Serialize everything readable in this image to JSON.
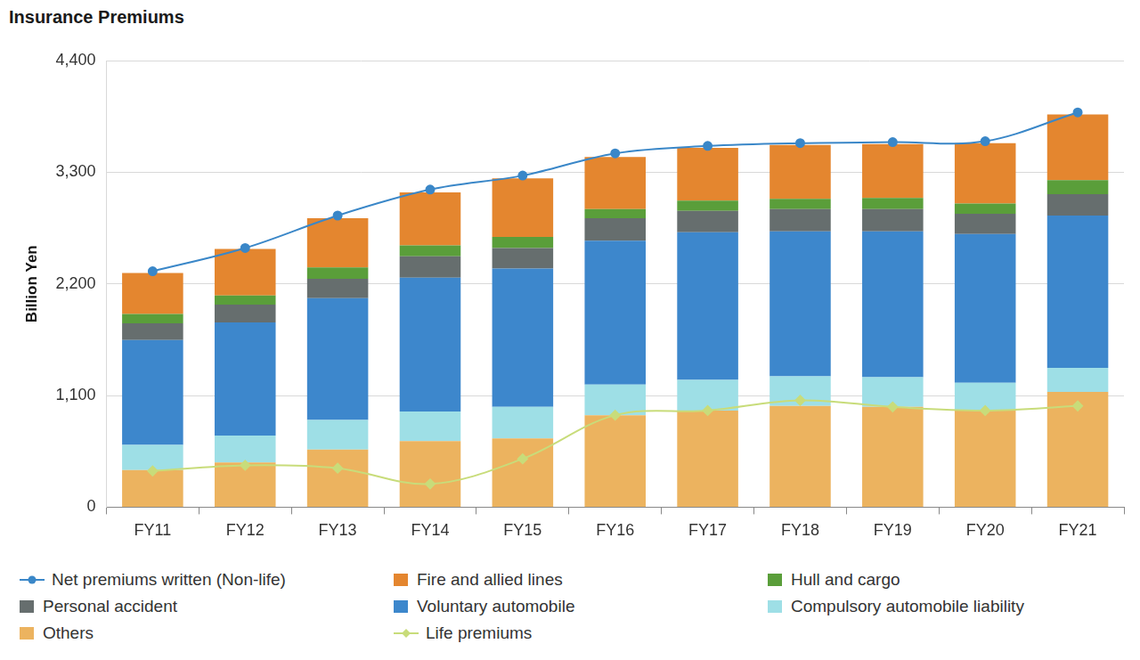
{
  "chart_data": {
    "type": "bar",
    "title": "Insurance Premiums",
    "y_label": "Billion Yen",
    "categories": [
      "FY11",
      "FY12",
      "FY13",
      "FY14",
      "FY15",
      "FY16",
      "FY17",
      "FY18",
      "FY19",
      "FY20",
      "FY21"
    ],
    "series": [
      {
        "name": "Net premiums written (Non-life)",
        "type": "line",
        "marker": "circle",
        "line_style": "solid",
        "color": "#3a87c8",
        "values": [
          2324,
          2553,
          2873,
          3129,
          3267,
          3486,
          3559,
          3587,
          3596,
          3605,
          3889
        ]
      },
      {
        "name": "Fire and allied lines",
        "type": "bar",
        "color": "#e4862f",
        "values": [
          403,
          458,
          485,
          522,
          576,
          513,
          521,
          531,
          531,
          595,
          649
        ]
      },
      {
        "name": "Hull and cargo",
        "type": "bar",
        "color": "#5a9e3a",
        "values": [
          91,
          91,
          110,
          109,
          110,
          91,
          101,
          101,
          110,
          101,
          137
        ]
      },
      {
        "name": "Personal accident",
        "type": "bar",
        "color": "#666e6e",
        "values": [
          165,
          174,
          192,
          211,
          201,
          220,
          211,
          219,
          219,
          201,
          211
        ]
      },
      {
        "name": "Voluntary automobile",
        "type": "bar",
        "color": "#3d87cc",
        "values": [
          1034,
          1116,
          1199,
          1318,
          1364,
          1418,
          1454,
          1428,
          1437,
          1464,
          1500
        ]
      },
      {
        "name": "Compulsory automobile liability",
        "type": "bar",
        "color": "#9edfe6",
        "values": [
          247,
          266,
          293,
          292,
          311,
          302,
          302,
          293,
          293,
          265,
          238
        ]
      },
      {
        "name": "Others",
        "type": "bar",
        "color": "#ecb35f",
        "values": [
          366,
          439,
          567,
          650,
          677,
          906,
          952,
          997,
          988,
          961,
          1135
        ]
      },
      {
        "name": "Life premiums",
        "type": "line",
        "marker": "diamond",
        "line_style": "solid",
        "color": "#c8dc7a",
        "values": [
          357,
          412,
          384,
          229,
          476,
          906,
          952,
          1052,
          988,
          952,
          997
        ]
      }
    ],
    "ylim": [
      0,
      4400
    ],
    "yticks": [
      0,
      {
        "value": 1100,
        "label": "1,100"
      },
      {
        "value": 2200,
        "label": "2,200"
      },
      {
        "value": 3300,
        "label": "3,300"
      },
      {
        "value": 4400,
        "label": "4,400"
      }
    ],
    "stacked": true,
    "grid": true,
    "legend": "bottom"
  }
}
